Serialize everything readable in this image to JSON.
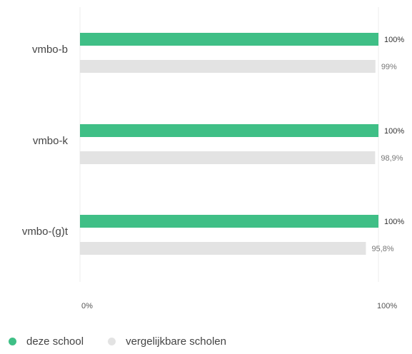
{
  "colors": {
    "school": "#3fbf86",
    "comparable": "#e3e3e3",
    "grid": "#ececec"
  },
  "chart_data": {
    "type": "bar",
    "orientation": "horizontal",
    "categories": [
      "vmbo-b",
      "vmbo-k",
      "vmbo-(g)t"
    ],
    "series": [
      {
        "name": "deze school",
        "values": [
          100,
          100,
          100
        ],
        "labels": [
          "100%",
          "100%",
          "100%"
        ]
      },
      {
        "name": "vergelijkbare scholen",
        "values": [
          99,
          98.9,
          95.8
        ],
        "labels": [
          "99%",
          "98,9%",
          "95,8%"
        ]
      }
    ],
    "xlim": [
      0,
      100
    ],
    "ticks": [
      "0%",
      "100%"
    ],
    "legend_position": "bottom-left"
  }
}
